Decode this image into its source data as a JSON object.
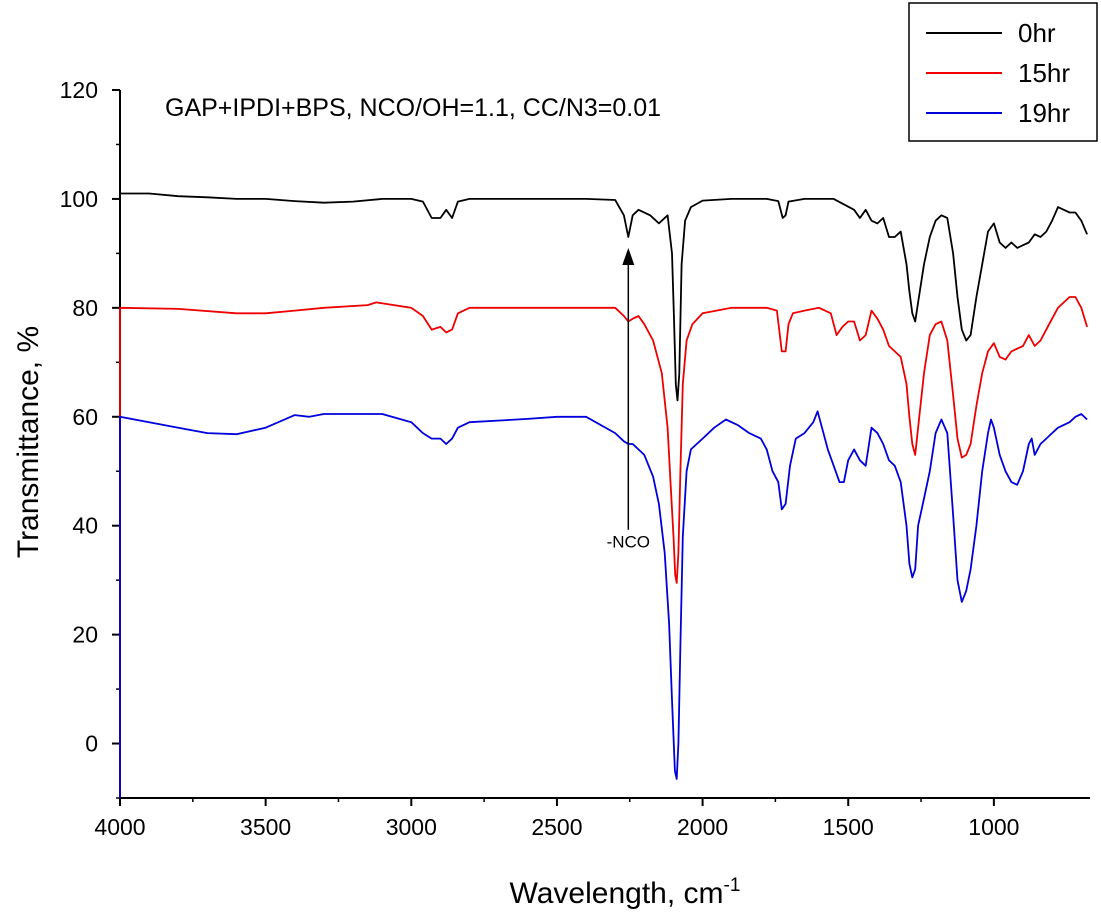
{
  "chart_data": {
    "type": "line",
    "title": "GAP+IPDI+BPS, NCO/OH=1.1, CC/N3=0.01",
    "xlabel": "Wavelength, cm",
    "xlabel_sup": "-1",
    "ylabel": "Transmittance, %",
    "xlim": [
      4000,
      670
    ],
    "ylim": [
      -10,
      120
    ],
    "x_ticks": [
      4000,
      3500,
      3000,
      2500,
      2000,
      1500,
      1000
    ],
    "y_ticks": [
      0,
      20,
      40,
      60,
      80,
      100,
      120
    ],
    "legend_position": "top-right",
    "annotation": {
      "text": "-NCO",
      "x": 2255,
      "y_from": 40,
      "y_to": 91
    },
    "series": [
      {
        "name": "0hr",
        "color": "#000000",
        "points": [
          [
            4000,
            101
          ],
          [
            3900,
            101
          ],
          [
            3800,
            100.5
          ],
          [
            3700,
            100.3
          ],
          [
            3600,
            100
          ],
          [
            3500,
            100
          ],
          [
            3400,
            99.6
          ],
          [
            3300,
            99.3
          ],
          [
            3200,
            99.5
          ],
          [
            3100,
            100
          ],
          [
            3000,
            100
          ],
          [
            2960,
            99.5
          ],
          [
            2930,
            96.5
          ],
          [
            2900,
            96.5
          ],
          [
            2880,
            98
          ],
          [
            2860,
            96.5
          ],
          [
            2840,
            99.5
          ],
          [
            2800,
            100
          ],
          [
            2600,
            100
          ],
          [
            2400,
            100
          ],
          [
            2300,
            99.8
          ],
          [
            2270,
            97
          ],
          [
            2255,
            93
          ],
          [
            2240,
            97
          ],
          [
            2220,
            98
          ],
          [
            2180,
            97
          ],
          [
            2150,
            95.5
          ],
          [
            2120,
            97
          ],
          [
            2105,
            90
          ],
          [
            2098,
            78
          ],
          [
            2092,
            66
          ],
          [
            2086,
            63
          ],
          [
            2080,
            68
          ],
          [
            2072,
            88
          ],
          [
            2060,
            96
          ],
          [
            2040,
            98.5
          ],
          [
            2000,
            99.7
          ],
          [
            1900,
            100
          ],
          [
            1780,
            100
          ],
          [
            1740,
            99.6
          ],
          [
            1725,
            96.5
          ],
          [
            1715,
            97
          ],
          [
            1705,
            99.5
          ],
          [
            1650,
            100
          ],
          [
            1550,
            100
          ],
          [
            1480,
            98
          ],
          [
            1460,
            96.5
          ],
          [
            1440,
            98
          ],
          [
            1420,
            96
          ],
          [
            1400,
            95.5
          ],
          [
            1380,
            96.5
          ],
          [
            1360,
            93
          ],
          [
            1340,
            93
          ],
          [
            1320,
            94
          ],
          [
            1300,
            88
          ],
          [
            1290,
            83
          ],
          [
            1280,
            79
          ],
          [
            1270,
            77.5
          ],
          [
            1260,
            81
          ],
          [
            1240,
            88
          ],
          [
            1220,
            93
          ],
          [
            1200,
            96
          ],
          [
            1180,
            97
          ],
          [
            1160,
            96.5
          ],
          [
            1140,
            90
          ],
          [
            1125,
            82
          ],
          [
            1110,
            76
          ],
          [
            1095,
            74
          ],
          [
            1080,
            75
          ],
          [
            1060,
            82
          ],
          [
            1040,
            88
          ],
          [
            1020,
            94
          ],
          [
            1000,
            95.5
          ],
          [
            980,
            92
          ],
          [
            960,
            91
          ],
          [
            940,
            92
          ],
          [
            920,
            91
          ],
          [
            900,
            91.5
          ],
          [
            880,
            92
          ],
          [
            860,
            93.5
          ],
          [
            840,
            93
          ],
          [
            820,
            94
          ],
          [
            800,
            96
          ],
          [
            780,
            98.5
          ],
          [
            760,
            98
          ],
          [
            740,
            97.5
          ],
          [
            720,
            97.5
          ],
          [
            700,
            96
          ],
          [
            680,
            93.5
          ]
        ]
      },
      {
        "name": "15hr",
        "color": "#ee0000",
        "points": [
          [
            4000,
            80
          ],
          [
            3800,
            79.8
          ],
          [
            3600,
            79
          ],
          [
            3500,
            79
          ],
          [
            3400,
            79.5
          ],
          [
            3300,
            80
          ],
          [
            3150,
            80.5
          ],
          [
            3120,
            81
          ],
          [
            3000,
            80
          ],
          [
            2960,
            78.5
          ],
          [
            2930,
            76
          ],
          [
            2900,
            76.5
          ],
          [
            2880,
            75.5
          ],
          [
            2860,
            76
          ],
          [
            2840,
            79
          ],
          [
            2800,
            80
          ],
          [
            2600,
            80
          ],
          [
            2400,
            80
          ],
          [
            2300,
            80
          ],
          [
            2270,
            78.5
          ],
          [
            2255,
            77.5
          ],
          [
            2240,
            78
          ],
          [
            2220,
            78.5
          ],
          [
            2200,
            77
          ],
          [
            2170,
            74
          ],
          [
            2140,
            68
          ],
          [
            2120,
            58
          ],
          [
            2110,
            48
          ],
          [
            2100,
            38
          ],
          [
            2094,
            31
          ],
          [
            2089,
            29.5
          ],
          [
            2083,
            35
          ],
          [
            2076,
            50
          ],
          [
            2068,
            66
          ],
          [
            2055,
            74
          ],
          [
            2035,
            77
          ],
          [
            2000,
            79
          ],
          [
            1900,
            80
          ],
          [
            1780,
            80
          ],
          [
            1745,
            79.5
          ],
          [
            1728,
            72
          ],
          [
            1715,
            72
          ],
          [
            1705,
            77
          ],
          [
            1690,
            79
          ],
          [
            1650,
            79.5
          ],
          [
            1600,
            80
          ],
          [
            1560,
            79
          ],
          [
            1540,
            75
          ],
          [
            1520,
            76.5
          ],
          [
            1500,
            77.5
          ],
          [
            1480,
            77.5
          ],
          [
            1460,
            74
          ],
          [
            1440,
            75
          ],
          [
            1420,
            79.5
          ],
          [
            1400,
            78
          ],
          [
            1380,
            76
          ],
          [
            1360,
            73
          ],
          [
            1340,
            72
          ],
          [
            1320,
            71
          ],
          [
            1300,
            66
          ],
          [
            1290,
            60
          ],
          [
            1280,
            55
          ],
          [
            1270,
            53
          ],
          [
            1260,
            58
          ],
          [
            1240,
            68
          ],
          [
            1220,
            75
          ],
          [
            1200,
            77
          ],
          [
            1180,
            77.5
          ],
          [
            1160,
            74
          ],
          [
            1140,
            64
          ],
          [
            1125,
            56
          ],
          [
            1110,
            52.5
          ],
          [
            1095,
            53
          ],
          [
            1080,
            55
          ],
          [
            1060,
            62
          ],
          [
            1040,
            68
          ],
          [
            1020,
            72
          ],
          [
            1000,
            73.5
          ],
          [
            980,
            71
          ],
          [
            960,
            70.5
          ],
          [
            940,
            72
          ],
          [
            920,
            72.5
          ],
          [
            900,
            73
          ],
          [
            880,
            75
          ],
          [
            860,
            73
          ],
          [
            840,
            74
          ],
          [
            820,
            76
          ],
          [
            800,
            78
          ],
          [
            780,
            80
          ],
          [
            760,
            81
          ],
          [
            740,
            82
          ],
          [
            720,
            82
          ],
          [
            700,
            80
          ],
          [
            680,
            76.5
          ]
        ]
      },
      {
        "name": "19hr",
        "color": "#0000dd",
        "points": [
          [
            4000,
            60
          ],
          [
            3900,
            59
          ],
          [
            3800,
            58
          ],
          [
            3700,
            57
          ],
          [
            3600,
            56.8
          ],
          [
            3500,
            58
          ],
          [
            3400,
            60.3
          ],
          [
            3350,
            60
          ],
          [
            3300,
            60.5
          ],
          [
            3200,
            60.5
          ],
          [
            3100,
            60.5
          ],
          [
            3000,
            59
          ],
          [
            2960,
            57
          ],
          [
            2930,
            56
          ],
          [
            2900,
            56
          ],
          [
            2880,
            55
          ],
          [
            2860,
            56
          ],
          [
            2840,
            58
          ],
          [
            2800,
            59
          ],
          [
            2600,
            59.6
          ],
          [
            2500,
            60
          ],
          [
            2400,
            60
          ],
          [
            2300,
            57
          ],
          [
            2270,
            55.5
          ],
          [
            2255,
            55
          ],
          [
            2240,
            55
          ],
          [
            2200,
            53
          ],
          [
            2170,
            49
          ],
          [
            2150,
            44
          ],
          [
            2130,
            35
          ],
          [
            2115,
            22
          ],
          [
            2105,
            8
          ],
          [
            2095,
            -5
          ],
          [
            2089,
            -6.5
          ],
          [
            2083,
            0
          ],
          [
            2076,
            18
          ],
          [
            2068,
            38
          ],
          [
            2055,
            50
          ],
          [
            2040,
            54
          ],
          [
            2000,
            56
          ],
          [
            1960,
            58
          ],
          [
            1920,
            59.5
          ],
          [
            1880,
            58.5
          ],
          [
            1840,
            57
          ],
          [
            1800,
            56
          ],
          [
            1780,
            54
          ],
          [
            1760,
            50
          ],
          [
            1740,
            48
          ],
          [
            1728,
            43
          ],
          [
            1715,
            44
          ],
          [
            1700,
            51
          ],
          [
            1680,
            56
          ],
          [
            1650,
            57
          ],
          [
            1620,
            59
          ],
          [
            1605,
            61
          ],
          [
            1590,
            58
          ],
          [
            1570,
            54
          ],
          [
            1550,
            51
          ],
          [
            1530,
            48
          ],
          [
            1515,
            48
          ],
          [
            1500,
            52
          ],
          [
            1480,
            54
          ],
          [
            1460,
            52
          ],
          [
            1440,
            51
          ],
          [
            1420,
            58
          ],
          [
            1400,
            57
          ],
          [
            1380,
            55
          ],
          [
            1360,
            52
          ],
          [
            1340,
            51
          ],
          [
            1320,
            48
          ],
          [
            1300,
            40
          ],
          [
            1290,
            33
          ],
          [
            1280,
            30.5
          ],
          [
            1270,
            32
          ],
          [
            1260,
            40
          ],
          [
            1240,
            45
          ],
          [
            1220,
            50
          ],
          [
            1200,
            57
          ],
          [
            1180,
            59.5
          ],
          [
            1160,
            57
          ],
          [
            1140,
            42
          ],
          [
            1125,
            30
          ],
          [
            1110,
            26
          ],
          [
            1095,
            28
          ],
          [
            1080,
            32
          ],
          [
            1060,
            40
          ],
          [
            1040,
            50
          ],
          [
            1020,
            57
          ],
          [
            1010,
            59.5
          ],
          [
            1000,
            58
          ],
          [
            980,
            53
          ],
          [
            960,
            50
          ],
          [
            940,
            48
          ],
          [
            920,
            47.5
          ],
          [
            900,
            50
          ],
          [
            880,
            55
          ],
          [
            870,
            56
          ],
          [
            860,
            53
          ],
          [
            840,
            55
          ],
          [
            820,
            56
          ],
          [
            800,
            57
          ],
          [
            780,
            58
          ],
          [
            760,
            58.5
          ],
          [
            740,
            59
          ],
          [
            720,
            60
          ],
          [
            700,
            60.5
          ],
          [
            680,
            59.5
          ]
        ]
      }
    ]
  }
}
